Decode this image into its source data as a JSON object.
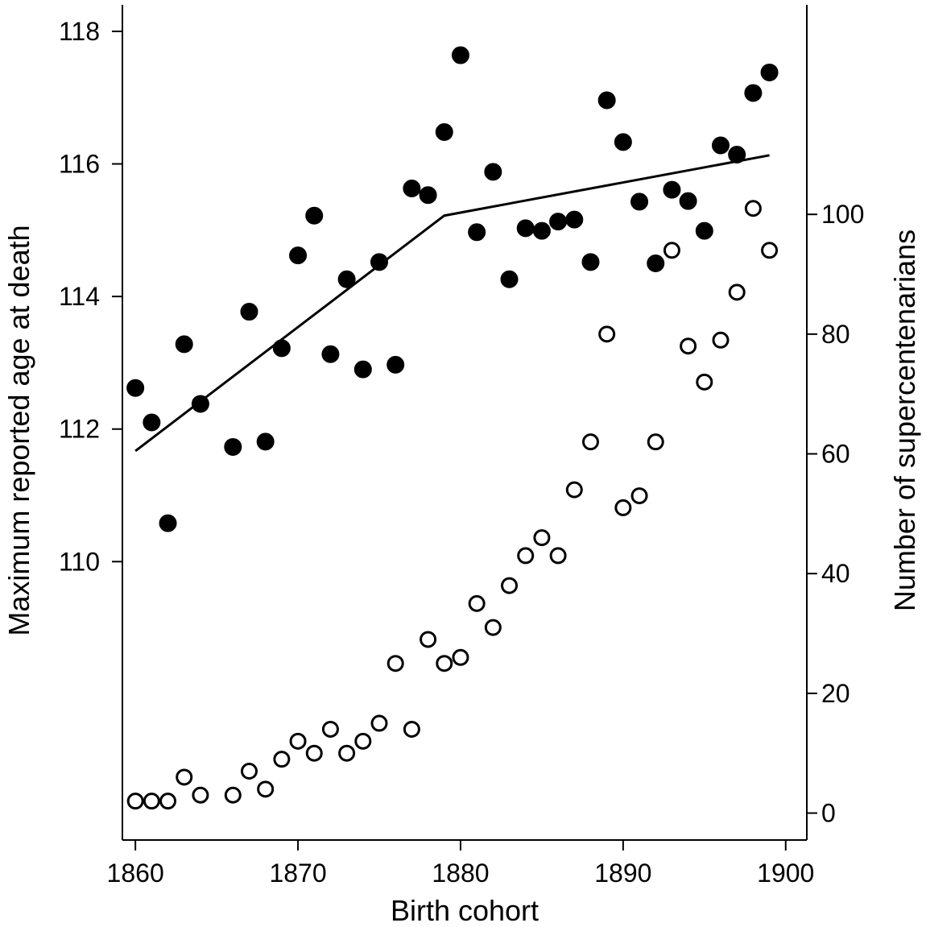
{
  "chart_data": {
    "type": "scatter",
    "title": "",
    "xlabel": "Birth cohort",
    "ylabel_left": "Maximum reported age at death",
    "ylabel_right": "Number of supercentenarians",
    "xlim": [
      1859.2,
      1901.3
    ],
    "ylim_left": [
      105.8,
      118.4
    ],
    "ylim_right": [
      -4.5,
      135
    ],
    "x_ticks": [
      1860,
      1870,
      1880,
      1890,
      1900
    ],
    "y_left_ticks": [
      110,
      112,
      114,
      116,
      118
    ],
    "y_right_ticks": [
      0,
      20,
      40,
      60,
      80,
      100
    ],
    "grid": false,
    "series": [
      {
        "name": "",
        "axis": "left",
        "marker": "filled-circle",
        "color": "#000000",
        "x": [
          1860,
          1861,
          1862,
          1863,
          1864,
          1866,
          1867,
          1868,
          1869,
          1870,
          1871,
          1872,
          1873,
          1874,
          1875,
          1876,
          1877,
          1878,
          1879,
          1880,
          1881,
          1882,
          1883,
          1884,
          1885,
          1886,
          1887,
          1888,
          1889,
          1890,
          1891,
          1892,
          1893,
          1894,
          1895,
          1896,
          1897,
          1898,
          1899
        ],
        "y": [
          112.62,
          112.1,
          110.58,
          113.28,
          112.38,
          111.73,
          113.77,
          111.81,
          113.22,
          114.62,
          115.22,
          113.13,
          114.26,
          112.9,
          114.52,
          112.97,
          115.63,
          115.53,
          116.48,
          117.64,
          114.97,
          115.88,
          114.26,
          115.03,
          114.99,
          115.13,
          115.16,
          114.52,
          116.96,
          116.33,
          115.43,
          114.5,
          115.61,
          115.44,
          114.99,
          116.28,
          116.14,
          117.07,
          117.38
        ]
      },
      {
        "name": "",
        "axis": "right",
        "marker": "open-circle",
        "color": "#000000",
        "x": [
          1860,
          1861,
          1862,
          1863,
          1864,
          1866,
          1867,
          1868,
          1869,
          1870,
          1871,
          1872,
          1873,
          1874,
          1875,
          1876,
          1877,
          1878,
          1879,
          1880,
          1881,
          1882,
          1883,
          1884,
          1885,
          1886,
          1887,
          1888,
          1889,
          1890,
          1891,
          1892,
          1893,
          1894,
          1895,
          1896,
          1897,
          1898,
          1899
        ],
        "y": [
          2,
          2,
          2,
          6,
          3,
          3,
          7,
          4,
          9,
          12,
          10,
          14,
          10,
          12,
          15,
          25,
          14,
          29,
          25,
          26,
          35,
          31,
          38,
          43,
          46,
          43,
          54,
          62,
          80,
          51,
          53,
          62,
          94,
          78,
          72,
          79,
          87,
          101,
          94
        ]
      },
      {
        "name": "",
        "axis": "left",
        "marker": "line",
        "color": "#000000",
        "x": [
          1860,
          1879,
          1899
        ],
        "y": [
          111.67,
          115.22,
          116.13
        ]
      }
    ]
  }
}
